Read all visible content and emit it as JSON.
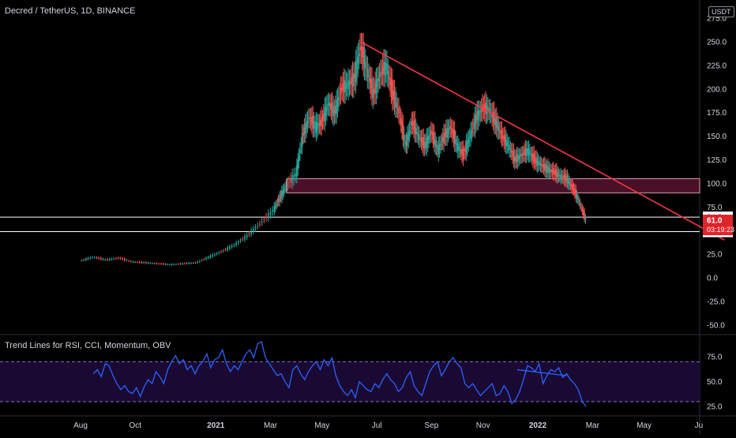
{
  "header": {
    "title": "Decred / TetherUS, 1D, BINANCE",
    "currency": "USDT"
  },
  "indicator": {
    "title": "Trend Lines for RSI, CCI, Momentum, OBV"
  },
  "colors": {
    "background": "#000000",
    "up": "#26a69a",
    "down": "#ef5350",
    "trendline": "#f23645",
    "zone": "#4a1028",
    "level_line": "#ffffff",
    "osc": "#2962ff",
    "osc_band": "#1a0a33",
    "osc_band_line": "#8a6fd6"
  },
  "chart_data": [
    {
      "type": "candlestick",
      "title": "Decred / TetherUS, 1D, BINANCE",
      "ylim": [
        -55,
        280
      ],
      "y_ticks": [
        "275.0",
        "250.0",
        "225.0",
        "200.0",
        "175.0",
        "150.0",
        "125.0",
        "100.0",
        "75.0",
        "50.0",
        "25.0",
        "0.0",
        "-25.0",
        "-50.0"
      ],
      "y_tick_values": [
        275,
        250,
        225,
        200,
        175,
        150,
        125,
        100,
        75,
        50,
        25,
        0,
        -25,
        -50
      ],
      "x_ticks": [
        "Aug",
        "Oct",
        "2021",
        "Mar",
        "May",
        "Jul",
        "Sep",
        "Nov",
        "2022",
        "Mar",
        "May",
        "Ju"
      ],
      "price_path": [
        [
          2020.58,
          18
        ],
        [
          2020.62,
          22
        ],
        [
          2020.66,
          19
        ],
        [
          2020.7,
          21
        ],
        [
          2020.74,
          17
        ],
        [
          2020.78,
          16
        ],
        [
          2020.82,
          15
        ],
        [
          2020.86,
          14
        ],
        [
          2020.9,
          15
        ],
        [
          2020.94,
          16
        ],
        [
          2020.98,
          22
        ],
        [
          2021.02,
          28
        ],
        [
          2021.06,
          35
        ],
        [
          2021.1,
          45
        ],
        [
          2021.14,
          58
        ],
        [
          2021.18,
          72
        ],
        [
          2021.2,
          85
        ],
        [
          2021.22,
          98
        ],
        [
          2021.25,
          110
        ],
        [
          2021.27,
          150
        ],
        [
          2021.29,
          170
        ],
        [
          2021.31,
          160
        ],
        [
          2021.33,
          165
        ],
        [
          2021.35,
          185
        ],
        [
          2021.37,
          175
        ],
        [
          2021.39,
          200
        ],
        [
          2021.41,
          205
        ],
        [
          2021.43,
          210
        ],
        [
          2021.45,
          245
        ],
        [
          2021.47,
          220
        ],
        [
          2021.49,
          195
        ],
        [
          2021.51,
          215
        ],
        [
          2021.53,
          225
        ],
        [
          2021.55,
          195
        ],
        [
          2021.57,
          175
        ],
        [
          2021.59,
          140
        ],
        [
          2021.61,
          165
        ],
        [
          2021.63,
          150
        ],
        [
          2021.65,
          140
        ],
        [
          2021.67,
          155
        ],
        [
          2021.69,
          135
        ],
        [
          2021.71,
          150
        ],
        [
          2021.73,
          160
        ],
        [
          2021.75,
          140
        ],
        [
          2021.77,
          130
        ],
        [
          2021.79,
          150
        ],
        [
          2021.81,
          170
        ],
        [
          2021.83,
          180
        ],
        [
          2021.85,
          178
        ],
        [
          2021.87,
          165
        ],
        [
          2021.89,
          150
        ],
        [
          2021.91,
          140
        ],
        [
          2021.93,
          125
        ],
        [
          2021.95,
          130
        ],
        [
          2021.97,
          135
        ],
        [
          2021.99,
          125
        ],
        [
          2022.01,
          120
        ],
        [
          2022.03,
          115
        ],
        [
          2022.05,
          112
        ],
        [
          2022.07,
          108
        ],
        [
          2022.09,
          105
        ],
        [
          2022.11,
          95
        ],
        [
          2022.13,
          80
        ],
        [
          2022.15,
          61
        ]
      ],
      "last_price": 61.0,
      "countdown": "03:19:23",
      "levels": [
        {
          "label": "64.3",
          "value": 64.3
        },
        {
          "label": "48.9",
          "value": 48.9
        }
      ],
      "zone": {
        "from": 90,
        "to": 105
      },
      "trendline": {
        "start": [
          2021.45,
          250
        ],
        "end": [
          2022.58,
          40
        ]
      }
    },
    {
      "type": "line",
      "title": "Trend Lines for RSI, CCI, Momentum, OBV",
      "ylim": [
        18,
        94
      ],
      "y_ticks": [
        "75.0",
        "50.0",
        "25.0"
      ],
      "y_tick_values": [
        75,
        50,
        25
      ],
      "band": [
        30,
        70
      ],
      "series": [
        {
          "values": [
            58,
            62,
            55,
            68,
            66,
            56,
            48,
            42,
            46,
            40,
            38,
            44,
            35,
            45,
            52,
            48,
            60,
            55,
            48,
            62,
            70,
            76,
            68,
            72,
            62,
            66,
            58,
            66,
            70,
            78,
            64,
            72,
            74,
            82,
            68,
            60,
            66,
            62,
            70,
            78,
            82,
            74,
            88,
            90,
            74,
            68,
            62,
            56,
            58,
            50,
            44,
            62,
            66,
            58,
            52,
            60,
            66,
            70,
            62,
            72,
            66,
            74,
            56,
            46,
            40,
            36,
            42,
            34,
            50,
            46,
            42,
            40,
            48,
            44,
            52,
            58,
            52,
            48,
            40,
            44,
            54,
            60,
            46,
            40,
            36,
            48,
            60,
            66,
            70,
            56,
            62,
            70,
            74,
            68,
            64,
            48,
            44,
            48,
            42,
            36,
            40,
            44,
            48,
            36,
            38,
            46,
            40,
            28,
            32,
            40,
            52,
            66,
            64,
            60,
            68,
            48,
            56,
            62,
            60,
            64,
            54,
            58,
            52,
            48,
            42,
            30,
            25
          ]
        }
      ],
      "trendline": {
        "start": 0.86,
        "end": 0.96,
        "y_start": 62,
        "y_end": 56
      }
    }
  ]
}
